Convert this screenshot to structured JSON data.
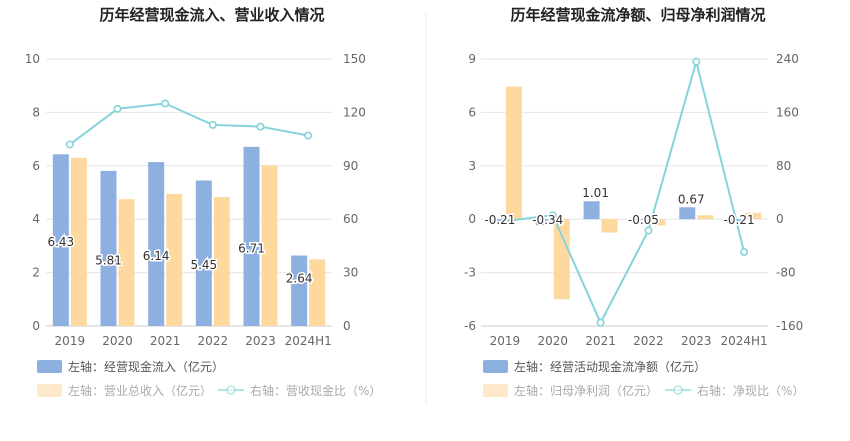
{
  "colors": {
    "bar_blue": "#8eb0e0",
    "bar_orange": "#fdd9a0",
    "line_teal": "#84d4d9",
    "grid": "#e6e6e6",
    "divider": "#eeeeee"
  },
  "chart_data": [
    {
      "type": "bar",
      "title": "历年经营现金流入、营业收入情况",
      "categories": [
        "2019",
        "2020",
        "2021",
        "2022",
        "2023",
        "2024H1"
      ],
      "left_axis": {
        "ylim": [
          0,
          10
        ],
        "ticks": [
          "0",
          "2",
          "4",
          "6",
          "8",
          "10"
        ]
      },
      "right_axis": {
        "ylim": [
          0,
          150
        ],
        "ticks": [
          "0",
          "30",
          "60",
          "90",
          "120",
          "150"
        ]
      },
      "series": [
        {
          "name": "左轴：经营现金流入（亿元）",
          "axis": "left",
          "kind": "bar",
          "values": [
            6.43,
            5.81,
            6.14,
            5.45,
            6.71,
            2.64
          ],
          "labels": [
            "6.43",
            "5.81",
            "6.14",
            "5.45",
            "6.71",
            "2.64"
          ]
        },
        {
          "name": "左轴：营业总收入（亿元）",
          "axis": "left",
          "kind": "bar",
          "values": [
            6.3,
            4.75,
            4.95,
            4.83,
            6.02,
            2.5
          ]
        },
        {
          "name": "右轴：营收现金比（%）",
          "axis": "right",
          "kind": "line",
          "values": [
            102,
            122,
            125,
            113,
            112,
            107
          ]
        }
      ]
    },
    {
      "type": "bar",
      "title": "历年经营现金流净额、归母净利润情况",
      "categories": [
        "2019",
        "2020",
        "2021",
        "2022",
        "2023",
        "2024H1"
      ],
      "left_axis": {
        "ylim": [
          -6,
          9
        ],
        "ticks": [
          "-6",
          "-3",
          "0",
          "3",
          "6",
          "9"
        ]
      },
      "right_axis": {
        "ylim": [
          -160,
          240
        ],
        "ticks": [
          "-160",
          "-80",
          "0",
          "80",
          "160",
          "240"
        ]
      },
      "series": [
        {
          "name": "左轴：经营活动现金流净额（亿元）",
          "axis": "left",
          "kind": "bar",
          "values": [
            -0.21,
            -0.34,
            1.01,
            -0.05,
            0.67,
            -0.21
          ],
          "labels": [
            "-0.21",
            "-0.34",
            "1.01",
            "-0.05",
            "0.67",
            "-0.21"
          ]
        },
        {
          "name": "左轴：归母净利润（亿元）",
          "axis": "left",
          "kind": "bar",
          "values": [
            7.45,
            -4.5,
            -0.75,
            -0.35,
            0.22,
            0.36
          ]
        },
        {
          "name": "右轴：净现比（%）",
          "axis": "right",
          "kind": "line",
          "values": [
            -3,
            6,
            -155,
            -17,
            236,
            -49
          ]
        }
      ]
    }
  ]
}
